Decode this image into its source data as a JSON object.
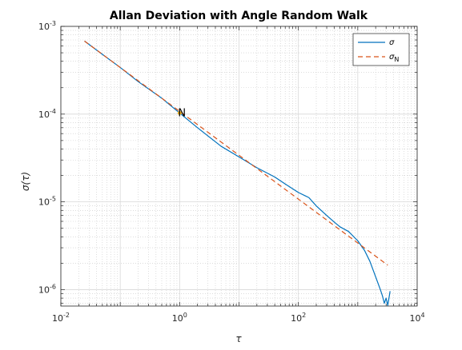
{
  "chart_data": {
    "type": "line",
    "title": "Allan Deviation with Angle Random Walk",
    "xlabel": "τ",
    "ylabel": "σ(τ)",
    "xscale": "log",
    "yscale": "log",
    "xlim": [
      0.01,
      10000
    ],
    "ylim": [
      6.5e-07,
      0.001
    ],
    "grid": true,
    "minor_grid": true,
    "legend_position": "top-right",
    "x_ticks": [
      {
        "base": "10",
        "exp": "-2",
        "value": 0.01
      },
      {
        "base": "10",
        "exp": "0",
        "value": 1
      },
      {
        "base": "10",
        "exp": "2",
        "value": 100
      },
      {
        "base": "10",
        "exp": "4",
        "value": 10000
      }
    ],
    "y_ticks": [
      {
        "base": "10",
        "exp": "-6",
        "value": 1e-06
      },
      {
        "base": "10",
        "exp": "-5",
        "value": 1e-05
      },
      {
        "base": "10",
        "exp": "-4",
        "value": 0.0001
      },
      {
        "base": "10",
        "exp": "-3",
        "value": 0.001
      }
    ],
    "series": [
      {
        "name": "σ",
        "legend_main": "σ",
        "legend_sub": "",
        "color": "#0072BD",
        "dash": "solid",
        "x": [
          0.025,
          0.05,
          0.1,
          0.2,
          0.5,
          1,
          2,
          5,
          10,
          20,
          40,
          60,
          100,
          150,
          200,
          300,
          400,
          500,
          700,
          1000,
          1300,
          1600,
          2000,
          2400,
          2600,
          2800,
          3000,
          3200,
          3500
        ],
        "y": [
          0.00068,
          0.00048,
          0.00034,
          0.000235,
          0.000152,
          0.000103,
          7e-05,
          4.3e-05,
          3.25e-05,
          2.45e-05,
          1.92e-05,
          1.6e-05,
          1.28e-05,
          1.12e-05,
          9e-06,
          7e-06,
          5.9e-06,
          5.2e-06,
          4.6e-06,
          3.6e-06,
          2.8e-06,
          2.1e-06,
          1.4e-06,
          1e-06,
          8.5e-07,
          7e-07,
          8e-07,
          6.6e-07,
          9.6e-07
        ]
      },
      {
        "name": "σN",
        "legend_main": "σ",
        "legend_sub": "N",
        "color": "#D95319",
        "dash": "dashed",
        "x": [
          0.025,
          3200
        ],
        "y": [
          0.00068,
          1.9e-06
        ]
      }
    ],
    "annotations": [
      {
        "text": "N",
        "x": 1.0,
        "y": 0.000103,
        "marker_color": "#EDB120"
      }
    ]
  }
}
